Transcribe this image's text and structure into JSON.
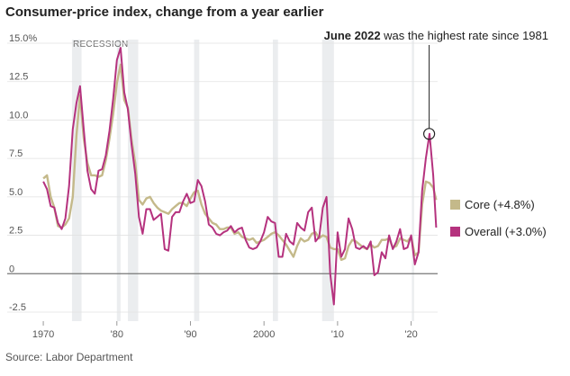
{
  "title": "Consumer-price index, change from a year earlier",
  "source": "Source: Labor Department",
  "chart_data": {
    "type": "line",
    "title": "Consumer-price index, change from a year earlier",
    "xlabel": "",
    "ylabel": "",
    "xlim": [
      1969.5,
      2023.6
    ],
    "ylim": [
      -2.5,
      15.0
    ],
    "y_ticks": [
      15.0,
      12.5,
      10.0,
      7.5,
      5.0,
      2.5,
      0,
      -2.5
    ],
    "y_tick_labels": [
      "15.0%",
      "12.5",
      "10.0",
      "7.5",
      "5.0",
      "2.5",
      "0",
      "-2.5"
    ],
    "x_ticks": [
      1970,
      1980,
      1990,
      2000,
      2010,
      2020
    ],
    "x_tick_labels": [
      "1970",
      "'80",
      "'90",
      "2000",
      "'10",
      "'20"
    ],
    "recession_label": "RECESSION",
    "recessions": [
      [
        1973.9,
        1975.2
      ],
      [
        1980.0,
        1980.5
      ],
      [
        1981.5,
        1982.9
      ],
      [
        1990.5,
        1991.2
      ],
      [
        2001.2,
        2001.9
      ],
      [
        2007.9,
        2009.5
      ],
      [
        2020.1,
        2020.4
      ]
    ],
    "annotation": {
      "bold": "June 2022",
      "text": " was the highest rate since 1981",
      "x": 2022.45,
      "y": 9.1
    },
    "series": [
      {
        "name": "Core (+4.8%)",
        "color": "#c4b98a",
        "x": [
          1970.0,
          1970.5,
          1971.0,
          1971.5,
          1972.0,
          1972.5,
          1973.0,
          1973.5,
          1974.0,
          1974.5,
          1975.0,
          1975.5,
          1976.0,
          1976.5,
          1977.0,
          1977.5,
          1978.0,
          1978.5,
          1979.0,
          1979.5,
          1980.0,
          1980.5,
          1981.0,
          1981.5,
          1982.0,
          1982.5,
          1983.0,
          1983.5,
          1984.0,
          1984.5,
          1985.0,
          1985.5,
          1986.0,
          1986.5,
          1987.0,
          1987.5,
          1988.0,
          1988.5,
          1989.0,
          1989.5,
          1990.0,
          1990.5,
          1991.0,
          1991.5,
          1992.0,
          1992.5,
          1993.0,
          1993.5,
          1994.0,
          1994.5,
          1995.0,
          1995.5,
          1996.0,
          1996.5,
          1997.0,
          1997.5,
          1998.0,
          1998.5,
          1999.0,
          1999.5,
          2000.0,
          2000.5,
          2001.0,
          2001.5,
          2002.0,
          2002.5,
          2003.0,
          2003.5,
          2004.0,
          2004.5,
          2005.0,
          2005.5,
          2006.0,
          2006.5,
          2007.0,
          2007.5,
          2008.0,
          2008.5,
          2009.0,
          2009.5,
          2010.0,
          2010.5,
          2011.0,
          2011.5,
          2012.0,
          2012.5,
          2013.0,
          2013.5,
          2014.0,
          2014.5,
          2015.0,
          2015.5,
          2016.0,
          2016.5,
          2017.0,
          2017.5,
          2018.0,
          2018.5,
          2019.0,
          2019.5,
          2020.0,
          2020.5,
          2021.0,
          2021.5,
          2022.0,
          2022.5,
          2023.0,
          2023.4
        ],
        "values": [
          6.2,
          6.4,
          5.0,
          4.3,
          3.1,
          3.0,
          3.2,
          3.6,
          5.0,
          9.0,
          11.6,
          8.8,
          7.2,
          6.4,
          6.4,
          6.3,
          6.4,
          7.4,
          8.8,
          10.4,
          12.4,
          13.6,
          11.3,
          10.8,
          8.7,
          7.2,
          4.8,
          4.5,
          4.9,
          5.0,
          4.6,
          4.3,
          4.1,
          4.0,
          3.9,
          4.2,
          4.4,
          4.6,
          4.6,
          4.4,
          4.9,
          5.3,
          5.4,
          4.5,
          3.9,
          3.6,
          3.3,
          3.2,
          2.9,
          2.9,
          3.0,
          3.0,
          2.6,
          2.7,
          2.4,
          2.3,
          2.2,
          2.3,
          2.0,
          2.1,
          2.2,
          2.4,
          2.6,
          2.7,
          2.5,
          2.2,
          1.9,
          1.5,
          1.1,
          1.8,
          2.3,
          2.1,
          2.2,
          2.6,
          2.7,
          2.3,
          2.5,
          2.4,
          1.7,
          1.6,
          1.6,
          0.9,
          1.0,
          1.8,
          2.2,
          2.1,
          1.9,
          1.7,
          1.6,
          1.9,
          1.7,
          1.8,
          2.2,
          2.2,
          2.3,
          1.7,
          1.8,
          2.3,
          2.2,
          2.1,
          2.4,
          1.2,
          1.4,
          4.5,
          6.0,
          5.9,
          5.6,
          4.8
        ]
      },
      {
        "name": "Overall (+3.0%)",
        "color": "#b5327e",
        "x": [
          1970.0,
          1970.5,
          1971.0,
          1971.5,
          1972.0,
          1972.5,
          1973.0,
          1973.5,
          1974.0,
          1974.5,
          1975.0,
          1975.5,
          1976.0,
          1976.5,
          1977.0,
          1977.5,
          1978.0,
          1978.5,
          1979.0,
          1979.5,
          1980.0,
          1980.5,
          1981.0,
          1981.5,
          1982.0,
          1982.5,
          1983.0,
          1983.5,
          1984.0,
          1984.5,
          1985.0,
          1985.5,
          1986.0,
          1986.5,
          1987.0,
          1987.5,
          1988.0,
          1988.5,
          1989.0,
          1989.5,
          1990.0,
          1990.5,
          1991.0,
          1991.5,
          1992.0,
          1992.5,
          1993.0,
          1993.5,
          1994.0,
          1994.5,
          1995.0,
          1995.5,
          1996.0,
          1996.5,
          1997.0,
          1997.5,
          1998.0,
          1998.5,
          1999.0,
          1999.5,
          2000.0,
          2000.5,
          2001.0,
          2001.5,
          2002.0,
          2002.5,
          2003.0,
          2003.5,
          2004.0,
          2004.5,
          2005.0,
          2005.5,
          2006.0,
          2006.5,
          2007.0,
          2007.5,
          2008.0,
          2008.5,
          2009.0,
          2009.5,
          2010.0,
          2010.5,
          2011.0,
          2011.5,
          2012.0,
          2012.5,
          2013.0,
          2013.5,
          2014.0,
          2014.5,
          2015.0,
          2015.5,
          2016.0,
          2016.5,
          2017.0,
          2017.5,
          2018.0,
          2018.5,
          2019.0,
          2019.5,
          2020.0,
          2020.5,
          2021.0,
          2021.5,
          2022.0,
          2022.5,
          2023.0,
          2023.4
        ],
        "values": [
          6.0,
          5.5,
          4.4,
          4.3,
          3.3,
          2.9,
          3.6,
          5.7,
          9.4,
          11.1,
          12.2,
          9.4,
          6.7,
          5.5,
          5.2,
          6.7,
          6.8,
          7.7,
          9.3,
          11.4,
          13.9,
          14.7,
          11.8,
          10.7,
          8.4,
          6.5,
          3.7,
          2.6,
          4.2,
          4.2,
          3.5,
          3.7,
          3.9,
          1.6,
          1.5,
          3.7,
          4.0,
          4.0,
          4.7,
          5.2,
          4.6,
          4.7,
          6.1,
          5.7,
          4.7,
          3.2,
          3.0,
          2.6,
          2.5,
          2.7,
          2.8,
          3.1,
          2.7,
          2.9,
          3.0,
          2.2,
          1.7,
          1.6,
          1.7,
          2.1,
          2.7,
          3.7,
          3.4,
          3.3,
          1.1,
          1.1,
          2.6,
          2.1,
          1.9,
          3.3,
          3.0,
          2.8,
          4.0,
          4.3,
          2.1,
          2.4,
          4.3,
          5.0,
          0.0,
          -2.0,
          2.7,
          1.1,
          1.6,
          3.6,
          2.9,
          1.7,
          1.6,
          1.8,
          1.6,
          2.1,
          -0.1,
          0.1,
          1.4,
          1.0,
          2.5,
          1.6,
          2.1,
          2.9,
          1.6,
          1.7,
          2.5,
          0.6,
          1.4,
          5.4,
          7.5,
          9.1,
          6.4,
          3.0
        ]
      }
    ]
  }
}
